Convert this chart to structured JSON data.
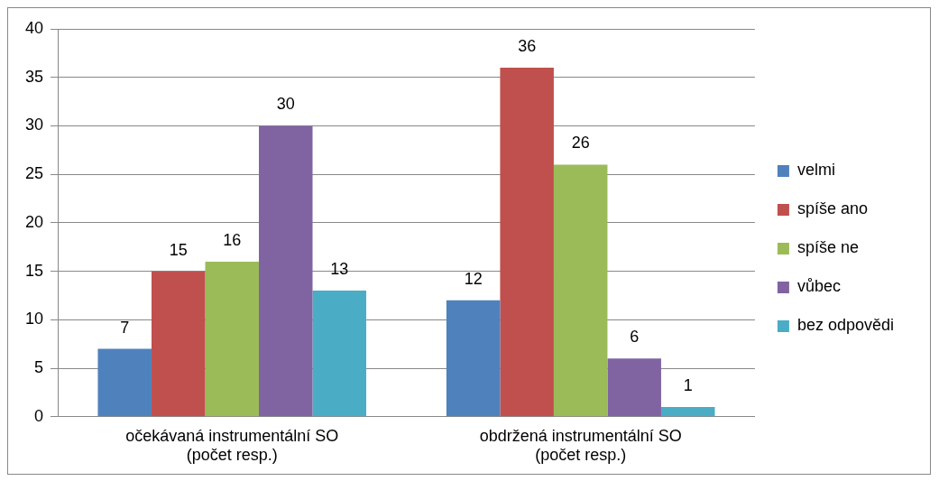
{
  "chart_data": {
    "type": "bar",
    "categories": [
      "očekávaná instrumentální SO\n(počet resp.)",
      "obdržená instrumentální SO\n(počet resp.)"
    ],
    "series": [
      {
        "name": "velmi",
        "color": "#4f81bd",
        "values": [
          7,
          12
        ]
      },
      {
        "name": "spíše ano",
        "color": "#c0504d",
        "values": [
          15,
          36
        ]
      },
      {
        "name": "spíše ne",
        "color": "#9bbb59",
        "values": [
          16,
          26
        ]
      },
      {
        "name": "vůbec",
        "color": "#8064a2",
        "values": [
          30,
          6
        ]
      },
      {
        "name": "bez odpovědi",
        "color": "#4bacc6",
        "values": [
          13,
          1
        ]
      }
    ],
    "ylim": [
      0,
      40
    ],
    "yticks": [
      0,
      5,
      10,
      15,
      20,
      25,
      30,
      35,
      40
    ],
    "grid": "y",
    "legend": "right",
    "data_labels": true
  }
}
